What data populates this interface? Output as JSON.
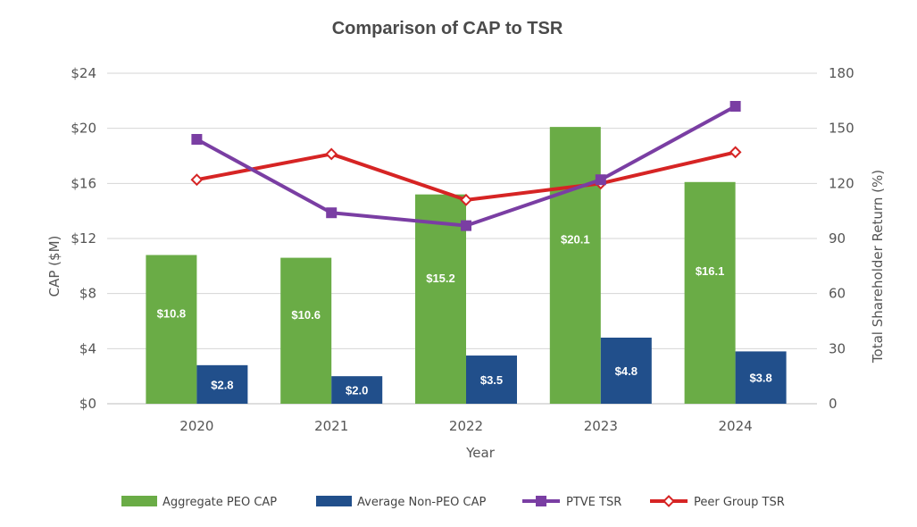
{
  "chart_data": {
    "type": "bar",
    "title": "Comparison of CAP to TSR",
    "xlabel": "Year",
    "ylabel": "CAP ($M)",
    "y2label": "Total Shareholder Return (%)",
    "categories": [
      "2020",
      "2021",
      "2022",
      "2023",
      "2024"
    ],
    "ylim": [
      0,
      24
    ],
    "yticks": [
      "$0",
      "$4",
      "$8",
      "$12",
      "$16",
      "$20",
      "$24"
    ],
    "y2lim": [
      0,
      180
    ],
    "y2ticks": [
      "0",
      "30",
      "60",
      "90",
      "120",
      "150",
      "180"
    ],
    "grid": true,
    "legend_position": "bottom",
    "series": [
      {
        "name": "Aggregate PEO CAP",
        "type": "bar",
        "axis": "left",
        "color": "#6aac46",
        "values": [
          10.8,
          10.6,
          15.2,
          20.1,
          16.1
        ],
        "labels": [
          "$10.8",
          "$10.6",
          "$15.2",
          "$20.1",
          "$16.1"
        ]
      },
      {
        "name": "Average Non-PEO CAP",
        "type": "bar",
        "axis": "left",
        "color": "#214f8b",
        "values": [
          2.8,
          2.0,
          3.5,
          4.8,
          3.8
        ],
        "labels": [
          "$2.8",
          "$2.0",
          "$3.5",
          "$4.8",
          "$3.8"
        ]
      },
      {
        "name": "PTVE TSR",
        "type": "line",
        "axis": "right",
        "color": "#7a3ea3",
        "marker": "square",
        "values": [
          144,
          104,
          97,
          122,
          162
        ]
      },
      {
        "name": "Peer Group TSR",
        "type": "line",
        "axis": "right",
        "color": "#d62424",
        "marker": "diamond",
        "values": [
          122,
          136,
          111,
          120,
          137
        ]
      }
    ]
  }
}
